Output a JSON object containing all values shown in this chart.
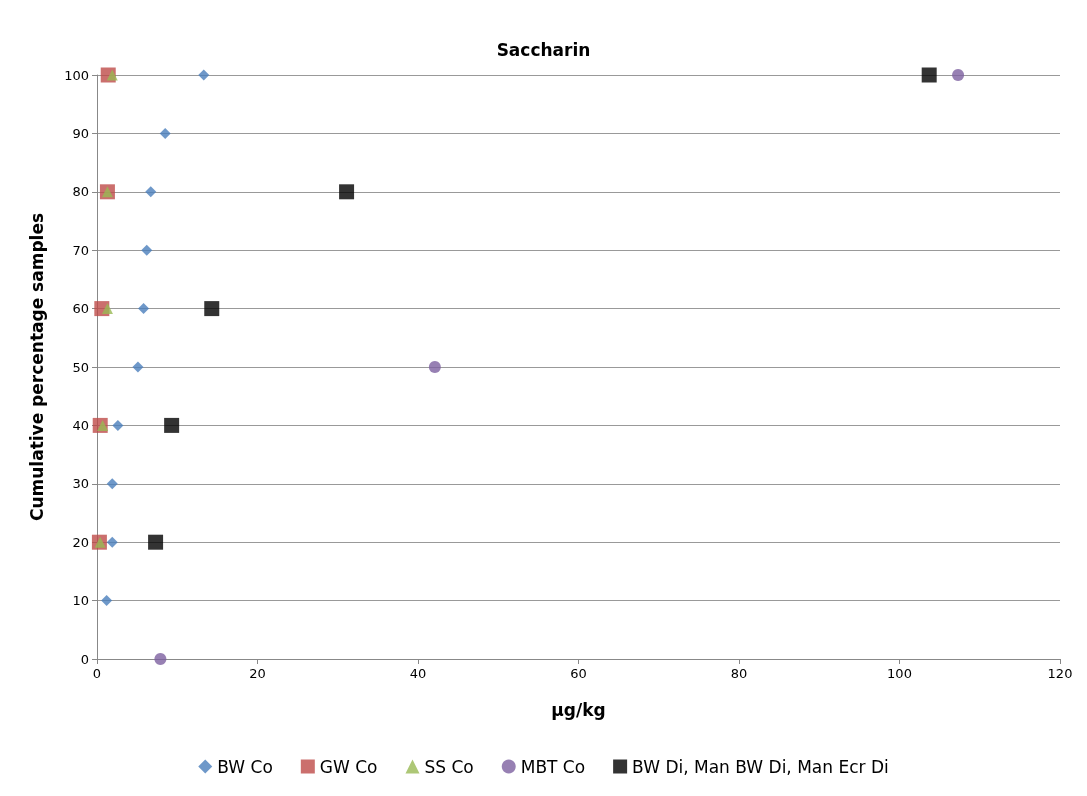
{
  "chart_data": {
    "type": "scatter",
    "title": "Saccharin",
    "xlabel": "µg/kg",
    "ylabel": "Cumulative percentage samples",
    "xlim": [
      0,
      120
    ],
    "xticks": [
      0,
      20,
      40,
      60,
      80,
      100,
      120
    ],
    "ylim": [
      0,
      100
    ],
    "yticks": [
      0,
      10,
      20,
      30,
      40,
      50,
      60,
      70,
      80,
      90,
      100
    ],
    "grid": "y",
    "legend": "bottom",
    "series": [
      {
        "name": "BW Co",
        "color": "#4a7ebb",
        "marker": "diamond",
        "x": [
          13.3,
          8.5,
          6.7,
          6.2,
          5.8,
          5.1,
          2.6,
          1.9,
          1.9,
          1.2
        ],
        "values": [
          100,
          90,
          80,
          70,
          60,
          50,
          40,
          30,
          20,
          10
        ]
      },
      {
        "name": "GW Co",
        "color": "#be4b48",
        "marker": "square",
        "x": [
          1.4,
          1.3,
          0.6,
          0.4,
          0.3
        ],
        "values": [
          100,
          80,
          60,
          40,
          20
        ]
      },
      {
        "name": "SS Co",
        "color": "#98b954",
        "marker": "triangle",
        "x": [
          1.9,
          1.3,
          1.3,
          0.7,
          0.4
        ],
        "values": [
          100,
          80,
          60,
          40,
          20
        ]
      },
      {
        "name": "MBT Co",
        "color": "#7d60a0",
        "marker": "circle",
        "x": [
          7.9,
          42.1,
          107.3
        ],
        "values": [
          0,
          50,
          100
        ]
      },
      {
        "name": "BW Di, Man BW Di, Man Ecr Di",
        "color": "#000000",
        "marker": "square",
        "x": [
          7.3,
          9.3,
          14.3,
          31.1,
          103.7
        ],
        "values": [
          20,
          40,
          60,
          80,
          100
        ]
      }
    ]
  }
}
